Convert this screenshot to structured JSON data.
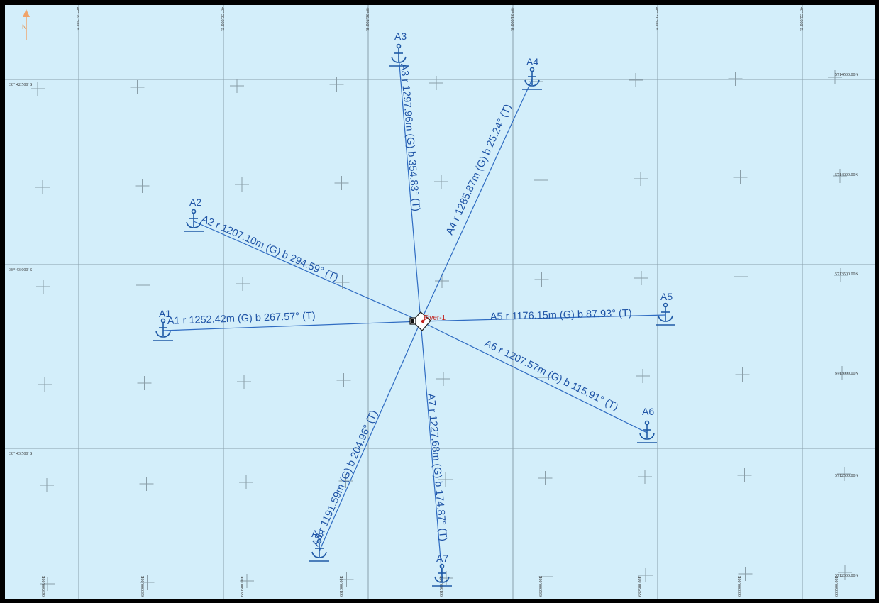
{
  "north_label": "N",
  "top_lon_labels": [
    "48° 29.500' E",
    "48° 30.000' E",
    "48° 30.500' E",
    "48° 31.000' E",
    "48° 31.500' E",
    "48° 32.000' E"
  ],
  "left_lat_labels": [
    "38° 42.500' S",
    "38° 43.000' S",
    "38° 43.500' S"
  ],
  "right_northing_labels": [
    "5714500.00N",
    "5714000.00N",
    "5713500.00N",
    "5713000.00N",
    "5712500.00N",
    "5712000.00N"
  ],
  "bottom_easting_labels": [
    "629500.00E",
    "630000.00E",
    "630500.00E",
    "631000.00E",
    "631500.00E",
    "632000.00E",
    "632500.00E",
    "633000.00E",
    "633500.00E"
  ],
  "rig": {
    "name": "Fiver-1"
  },
  "anchors": [
    {
      "id": "A1",
      "label": "A1 r 1252.42m (G) b 267.57° (T)"
    },
    {
      "id": "A2",
      "label": "A2 r 1207.10m (G) b 294.59° (T)"
    },
    {
      "id": "A3",
      "label": "A3 r 1297.96m (G) b 354.83° (T)"
    },
    {
      "id": "A4",
      "label": "A4 r 1285.87m (G) b 25.24° (T)"
    },
    {
      "id": "A5",
      "label": "A5 r 1176.15m (G) b 87.93° (T)"
    },
    {
      "id": "A6",
      "label": "A6 r 1207.57m (G) b 115.91° (T)"
    },
    {
      "id": "A7",
      "label": "A7 r 1227.68m (G) b 174.87° (T)"
    },
    {
      "id": "A8",
      "label": "A8 r 1191.59m (G) b 204.96° (T)"
    }
  ],
  "colors": {
    "water": "#d3eefa",
    "mooring_line": "#2f6cc2",
    "anchor": "#1f5aa6",
    "rig": "#c0201c"
  }
}
